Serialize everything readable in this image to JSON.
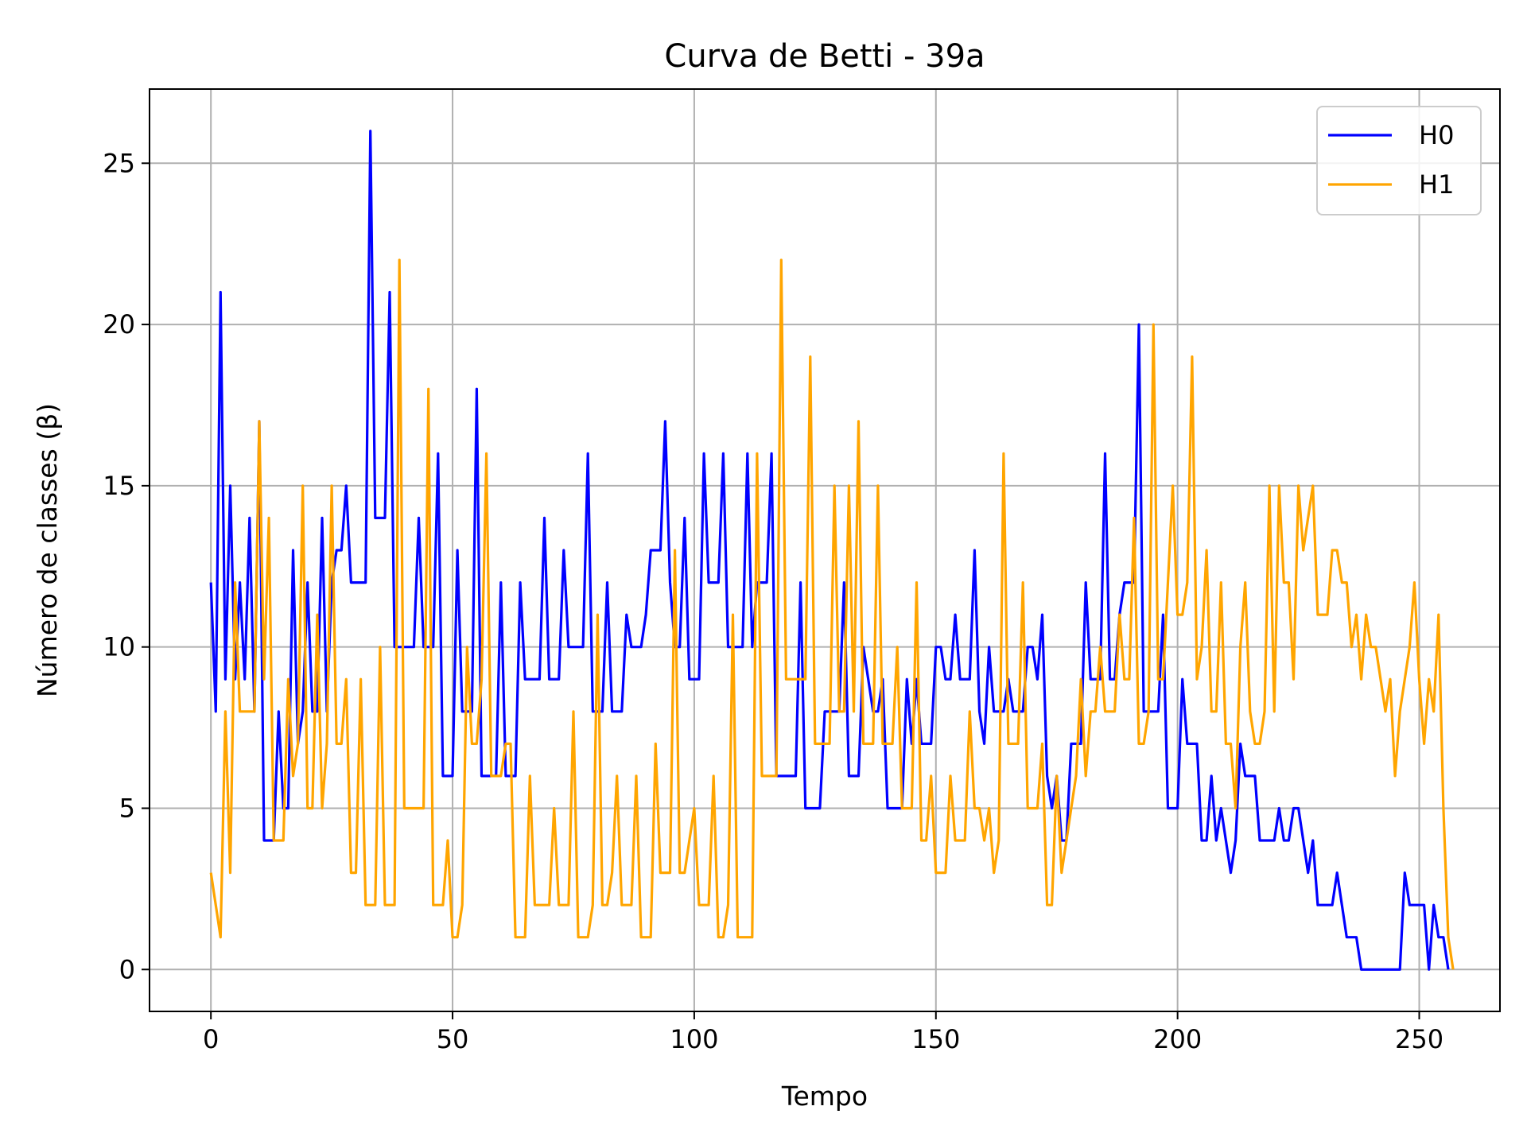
{
  "chart_data": {
    "type": "line",
    "title": "Curva de Betti - 39a",
    "xlabel": "Tempo",
    "ylabel": "Número de classes (β)",
    "xlim": [
      -12.7,
      266.7
    ],
    "ylim": [
      -1.3,
      27.3
    ],
    "xticks": [
      0,
      50,
      100,
      150,
      200,
      250
    ],
    "yticks": [
      0,
      5,
      10,
      15,
      20,
      25
    ],
    "grid": true,
    "legend_position": "top-right",
    "series": [
      {
        "name": "H0",
        "color": "#0000ff",
        "values": [
          12,
          8,
          21,
          9,
          15,
          9,
          12,
          9,
          14,
          8,
          17,
          4,
          4,
          4,
          8,
          5,
          5,
          13,
          7,
          8,
          12,
          8,
          8,
          14,
          8,
          12,
          13,
          13,
          15,
          12,
          12,
          12,
          12,
          26,
          14,
          14,
          14,
          21,
          10,
          10,
          10,
          10,
          10,
          14,
          10,
          10,
          10,
          16,
          6,
          6,
          6,
          13,
          8,
          8,
          8,
          18,
          6,
          6,
          6,
          6,
          12,
          6,
          6,
          6,
          12,
          9,
          9,
          9,
          9,
          14,
          9,
          9,
          9,
          13,
          10,
          10,
          10,
          10,
          16,
          8,
          8,
          8,
          12,
          8,
          8,
          8,
          11,
          10,
          10,
          10,
          11,
          13,
          13,
          13,
          17,
          12,
          10,
          10,
          14,
          9,
          9,
          9,
          16,
          12,
          12,
          12,
          16,
          10,
          10,
          10,
          10,
          16,
          10,
          12,
          12,
          12,
          16,
          6,
          6,
          6,
          6,
          6,
          12,
          5,
          5,
          5,
          5,
          8,
          8,
          8,
          8,
          12,
          6,
          6,
          6,
          10,
          9,
          8,
          8,
          9,
          5,
          5,
          5,
          5,
          9,
          7,
          9,
          7,
          7,
          7,
          10,
          10,
          9,
          9,
          11,
          9,
          9,
          9,
          13,
          8,
          7,
          10,
          8,
          8,
          8,
          9,
          8,
          8,
          8,
          10,
          10,
          9,
          11,
          6,
          5,
          6,
          4,
          4,
          7,
          7,
          7,
          12,
          9,
          9,
          9,
          16,
          9,
          9,
          11,
          12,
          12,
          12,
          20,
          8,
          8,
          8,
          8,
          11,
          5,
          5,
          5,
          9,
          7,
          7,
          7,
          4,
          4,
          6,
          4,
          5,
          4,
          3,
          4,
          7,
          6,
          6,
          6,
          4,
          4,
          4,
          4,
          5,
          4,
          4,
          5,
          5,
          4,
          3,
          4,
          2,
          2,
          2,
          2,
          3,
          2,
          1,
          1,
          1,
          0,
          0,
          0,
          0,
          0,
          0,
          0,
          0,
          0,
          3,
          2,
          2,
          2,
          2,
          0,
          2,
          1,
          1,
          0
        ]
      },
      {
        "name": "H1",
        "color": "#ffa500",
        "values": [
          3,
          2,
          1,
          8,
          3,
          12,
          8,
          8,
          8,
          8,
          17,
          9,
          14,
          4,
          4,
          4,
          9,
          6,
          7,
          15,
          5,
          5,
          11,
          5,
          7,
          15,
          7,
          7,
          9,
          3,
          3,
          9,
          2,
          2,
          2,
          10,
          2,
          2,
          2,
          22,
          5,
          5,
          5,
          5,
          5,
          18,
          2,
          2,
          2,
          4,
          1,
          1,
          2,
          10,
          7,
          7,
          9,
          16,
          6,
          6,
          6,
          7,
          7,
          1,
          1,
          1,
          6,
          2,
          2,
          2,
          2,
          5,
          2,
          2,
          2,
          8,
          1,
          1,
          1,
          2,
          11,
          2,
          2,
          3,
          6,
          2,
          2,
          2,
          6,
          1,
          1,
          1,
          7,
          3,
          3,
          3,
          13,
          3,
          3,
          4,
          5,
          2,
          2,
          2,
          6,
          1,
          1,
          2,
          11,
          1,
          1,
          1,
          1,
          16,
          6,
          6,
          6,
          6,
          22,
          9,
          9,
          9,
          9,
          9,
          19,
          7,
          7,
          7,
          7,
          15,
          8,
          8,
          15,
          8,
          17,
          7,
          7,
          7,
          15,
          7,
          7,
          7,
          10,
          5,
          5,
          5,
          12,
          4,
          4,
          6,
          3,
          3,
          3,
          6,
          4,
          4,
          4,
          8,
          5,
          5,
          4,
          5,
          3,
          4,
          16,
          7,
          7,
          7,
          12,
          5,
          5,
          5,
          7,
          2,
          2,
          6,
          3,
          4,
          5,
          6,
          9,
          6,
          8,
          8,
          10,
          8,
          8,
          8,
          11,
          9,
          9,
          14,
          7,
          7,
          8,
          20,
          9,
          9,
          12,
          15,
          11,
          11,
          12,
          19,
          9,
          10,
          13,
          8,
          8,
          12,
          7,
          7,
          5,
          10,
          12,
          8,
          7,
          7,
          8,
          15,
          8,
          15,
          12,
          12,
          9,
          15,
          13,
          14,
          15,
          11,
          11,
          11,
          13,
          13,
          12,
          12,
          10,
          11,
          9,
          11,
          10,
          10,
          9,
          8,
          9,
          6,
          8,
          9,
          10,
          12,
          9,
          7,
          9,
          8,
          11,
          5,
          1,
          0
        ]
      }
    ]
  }
}
